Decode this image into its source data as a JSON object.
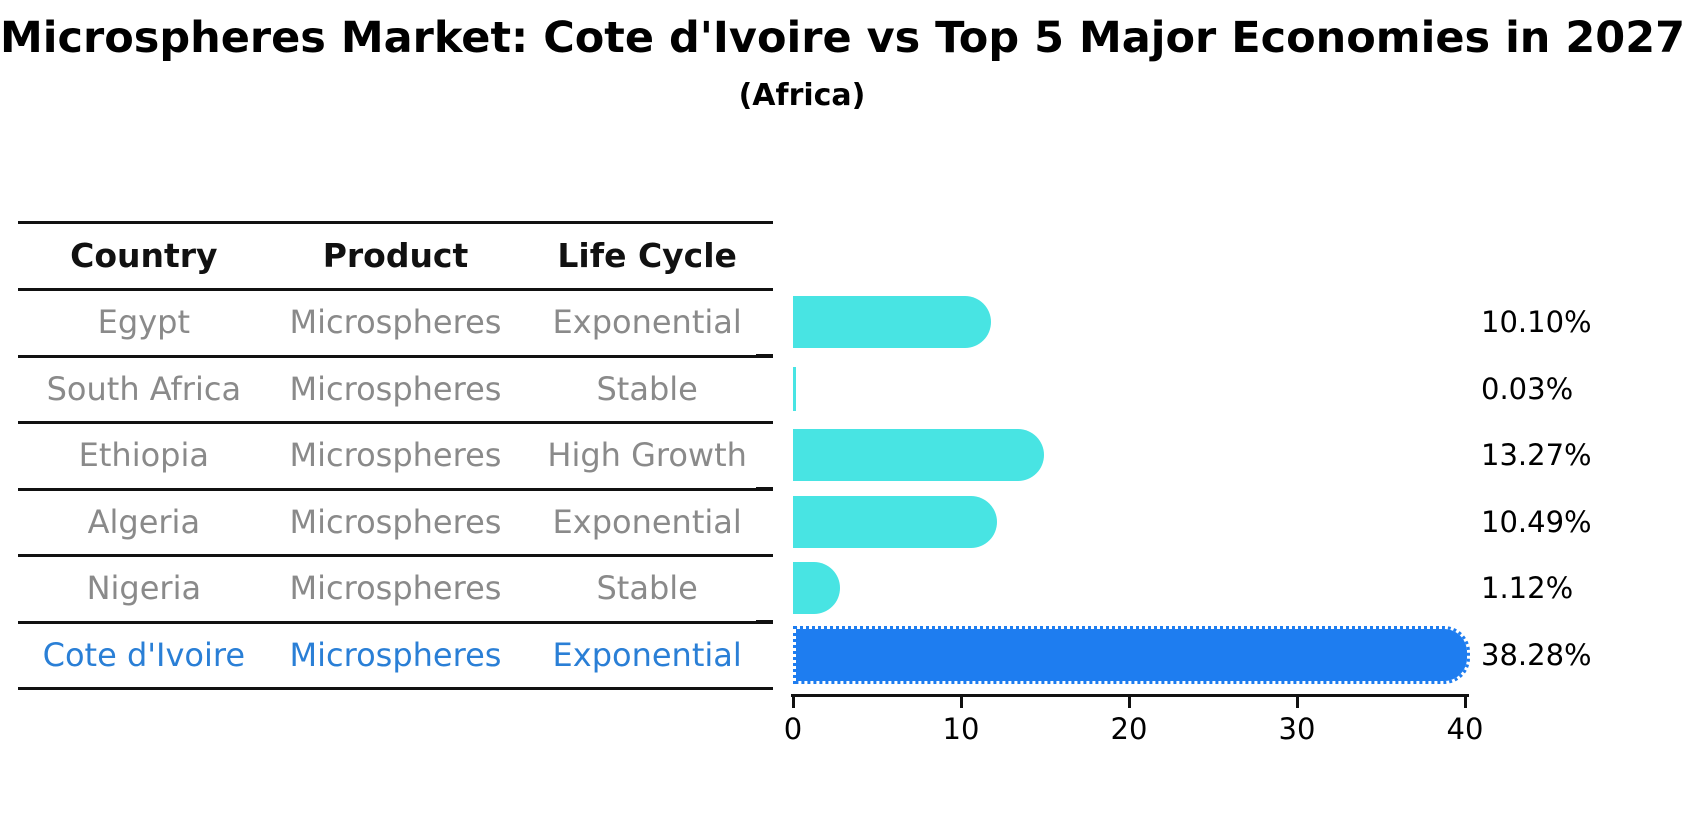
{
  "header": {
    "title": "Microspheres Market: Cote d'Ivoire vs Top 5 Major Economies in 2027",
    "subtitle": "(Africa)"
  },
  "table": {
    "columns": [
      "Country",
      "Product",
      "Life Cycle"
    ],
    "rows": [
      {
        "country": "Egypt",
        "product": "Microspheres",
        "life_cycle": "Exponential",
        "highlight": false
      },
      {
        "country": "South Africa",
        "product": "Microspheres",
        "life_cycle": "Stable",
        "highlight": false
      },
      {
        "country": "Ethiopia",
        "product": "Microspheres",
        "life_cycle": "High Growth",
        "highlight": false
      },
      {
        "country": "Algeria",
        "product": "Microspheres",
        "life_cycle": "Exponential",
        "highlight": false
      },
      {
        "country": "Nigeria",
        "product": "Microspheres",
        "life_cycle": "Stable",
        "highlight": false
      },
      {
        "country": "Cote d'Ivoire",
        "product": "Microspheres",
        "life_cycle": "Exponential",
        "highlight": true
      }
    ]
  },
  "chart_data": {
    "type": "bar",
    "orientation": "horizontal",
    "title": "Microspheres Market: Cote d'Ivoire vs Top 5 Major Economies in 2027",
    "subtitle": "(Africa)",
    "categories": [
      "Egypt",
      "South Africa",
      "Ethiopia",
      "Algeria",
      "Nigeria",
      "Cote d'Ivoire"
    ],
    "values": [
      10.1,
      0.03,
      13.27,
      10.49,
      1.12,
      38.28
    ],
    "value_labels": [
      "10.10%",
      "0.03%",
      "13.27%",
      "10.49%",
      "1.12%",
      "38.28%"
    ],
    "xlim": [
      0,
      40
    ],
    "xticks": [
      0,
      10,
      20,
      30,
      40
    ],
    "xtick_labels": [
      "0",
      "10",
      "20",
      "30",
      "40"
    ],
    "highlight_index": 5,
    "grid": false,
    "legend": "none"
  },
  "colors": {
    "bar": "#48E4E3",
    "highlight_bar": "#1E7DF0",
    "highlight_text": "#2A7FD6",
    "row_text": "#8A8A8A",
    "header_text": "#111111",
    "axis": "#111111"
  }
}
